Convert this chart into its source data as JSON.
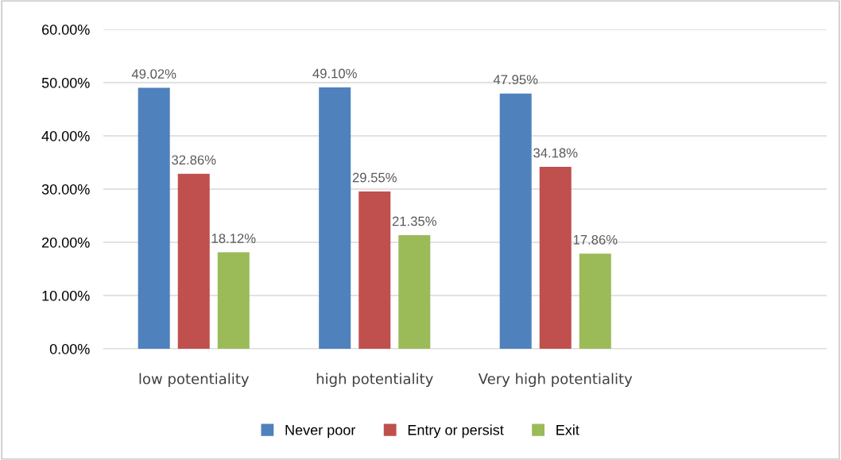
{
  "chart_data": {
    "type": "bar",
    "categories": [
      "low potentiality",
      "high potentiality",
      "Very high potentiality",
      null
    ],
    "series": [
      {
        "name": "Never poor",
        "color": "#4f81bd",
        "values": [
          49.02,
          49.1,
          47.95,
          null
        ],
        "value_labels": [
          "49.02%",
          "49.10%",
          "47.95%",
          null
        ]
      },
      {
        "name": "Entry or persist",
        "color": "#c0504d",
        "values": [
          32.86,
          29.55,
          34.18,
          null
        ],
        "value_labels": [
          "32.86%",
          "29.55%",
          "34.18%",
          null
        ]
      },
      {
        "name": "Exit",
        "color": "#9bbb59",
        "values": [
          18.12,
          21.35,
          17.86,
          null
        ],
        "value_labels": [
          "18.12%",
          "21.35%",
          "17.86%",
          null
        ]
      }
    ],
    "ylim": [
      0,
      60
    ],
    "yticks": [
      {
        "value": 0,
        "label": "0.00%"
      },
      {
        "value": 10,
        "label": "10.00%"
      },
      {
        "value": 20,
        "label": "20.00%"
      },
      {
        "value": 30,
        "label": "30.00%"
      },
      {
        "value": 40,
        "label": "40.00%"
      },
      {
        "value": 50,
        "label": "50.00%"
      },
      {
        "value": 60,
        "label": "60.00%"
      }
    ],
    "grid": "y",
    "legend": "bottom"
  }
}
